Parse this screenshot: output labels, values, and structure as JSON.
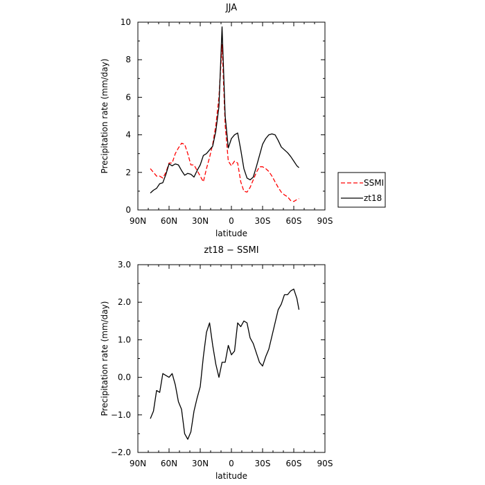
{
  "chart_data": [
    {
      "type": "line",
      "title": "JJA",
      "xlabel": "latitude",
      "ylabel": "Precipitation rate (mm/day)",
      "xlim": [
        90,
        -90
      ],
      "ylim": [
        0,
        10
      ],
      "x_ticks": [
        {
          "v": 90,
          "label": "90N"
        },
        {
          "v": 60,
          "label": "60N"
        },
        {
          "v": 30,
          "label": "30N"
        },
        {
          "v": 0,
          "label": "0"
        },
        {
          "v": -30,
          "label": "30S"
        },
        {
          "v": -60,
          "label": "60S"
        },
        {
          "v": -90,
          "label": "90S"
        }
      ],
      "y_ticks": [
        {
          "v": 0,
          "label": "0"
        },
        {
          "v": 2,
          "label": "2"
        },
        {
          "v": 4,
          "label": "4"
        },
        {
          "v": 6,
          "label": "6"
        },
        {
          "v": 8,
          "label": "8"
        },
        {
          "v": 10,
          "label": "10"
        }
      ],
      "grid": false,
      "legend_position": "right",
      "series": [
        {
          "name": "SSMI",
          "color": "#ff0000",
          "dash": true,
          "x": [
            78,
            75,
            72,
            69,
            66,
            63,
            60,
            57,
            54,
            51,
            48,
            45,
            42,
            39,
            36,
            33,
            30,
            27,
            24,
            21,
            18,
            15,
            12,
            9,
            6,
            3,
            0,
            -3,
            -6,
            -9,
            -12,
            -15,
            -18,
            -21,
            -24,
            -27,
            -30,
            -33,
            -36,
            -39,
            -42,
            -45,
            -48,
            -51,
            -54,
            -57,
            -60,
            -63,
            -65
          ],
          "y": [
            2.2,
            2.0,
            1.8,
            1.8,
            1.7,
            2.0,
            2.5,
            2.5,
            3.0,
            3.3,
            3.55,
            3.5,
            3.0,
            2.4,
            2.4,
            2.1,
            1.8,
            1.5,
            2.2,
            2.8,
            3.5,
            4.5,
            6.0,
            8.8,
            4.5,
            2.6,
            2.35,
            2.6,
            2.5,
            1.5,
            1.0,
            0.95,
            1.2,
            1.6,
            2.0,
            2.3,
            2.3,
            2.2,
            2.05,
            1.8,
            1.5,
            1.2,
            0.95,
            0.8,
            0.7,
            0.5,
            0.45,
            0.55,
            0.6
          ]
        },
        {
          "name": "zt18",
          "color": "#000000",
          "dash": false,
          "x": [
            78,
            75,
            72,
            69,
            66,
            63,
            60,
            57,
            54,
            51,
            48,
            45,
            42,
            39,
            36,
            33,
            30,
            27,
            24,
            21,
            18,
            15,
            12,
            9,
            6,
            3,
            0,
            -3,
            -6,
            -9,
            -12,
            -15,
            -18,
            -21,
            -24,
            -27,
            -30,
            -33,
            -36,
            -39,
            -42,
            -45,
            -48,
            -51,
            -54,
            -57,
            -60,
            -63,
            -65
          ],
          "y": [
            0.9,
            1.05,
            1.15,
            1.4,
            1.45,
            1.9,
            2.45,
            2.35,
            2.45,
            2.4,
            2.1,
            1.85,
            1.95,
            1.9,
            1.75,
            2.1,
            2.4,
            2.9,
            3.0,
            3.2,
            3.4,
            4.2,
            5.5,
            9.75,
            5.0,
            3.3,
            3.8,
            4.0,
            4.1,
            3.2,
            2.2,
            1.7,
            1.6,
            1.75,
            2.3,
            2.9,
            3.5,
            3.8,
            4.0,
            4.05,
            4.0,
            3.7,
            3.35,
            3.2,
            3.05,
            2.85,
            2.6,
            2.35,
            2.25
          ]
        }
      ]
    },
    {
      "type": "line",
      "title": "zt18 − SSMI",
      "xlabel": "latitude",
      "ylabel": "Precipitation rate (mm/day)",
      "xlim": [
        90,
        -90
      ],
      "ylim": [
        -2,
        3
      ],
      "x_ticks": [
        {
          "v": 90,
          "label": "90N"
        },
        {
          "v": 60,
          "label": "60N"
        },
        {
          "v": 30,
          "label": "30N"
        },
        {
          "v": 0,
          "label": "0"
        },
        {
          "v": -30,
          "label": "30S"
        },
        {
          "v": -60,
          "label": "60S"
        },
        {
          "v": -90,
          "label": "90S"
        }
      ],
      "y_ticks": [
        {
          "v": -2,
          "label": "−2.0"
        },
        {
          "v": -1,
          "label": "−1.0"
        },
        {
          "v": 0,
          "label": "0.0"
        },
        {
          "v": 1,
          "label": "1.0"
        },
        {
          "v": 2,
          "label": "2.0"
        },
        {
          "v": 3,
          "label": "3.0"
        }
      ],
      "grid": false,
      "series": [
        {
          "color": "#000000",
          "dash": false,
          "x": [
            78,
            75,
            72,
            69,
            66,
            63,
            60,
            57,
            54,
            51,
            48,
            45,
            42,
            39,
            36,
            33,
            30,
            27,
            24,
            21,
            18,
            15,
            12,
            9,
            6,
            3,
            0,
            -3,
            -6,
            -9,
            -12,
            -15,
            -18,
            -21,
            -24,
            -27,
            -30,
            -33,
            -36,
            -39,
            -42,
            -45,
            -48,
            -51,
            -54,
            -57,
            -60,
            -63,
            -65
          ],
          "y": [
            -1.1,
            -0.9,
            -0.35,
            -0.4,
            0.1,
            0.05,
            0.0,
            0.1,
            -0.2,
            -0.65,
            -0.85,
            -1.5,
            -1.65,
            -1.45,
            -0.9,
            -0.55,
            -0.25,
            0.55,
            1.2,
            1.45,
            0.85,
            0.35,
            0.0,
            0.4,
            0.4,
            0.85,
            0.6,
            0.7,
            1.45,
            1.35,
            1.5,
            1.45,
            1.05,
            0.9,
            0.65,
            0.4,
            0.3,
            0.55,
            0.75,
            1.1,
            1.45,
            1.8,
            1.95,
            2.2,
            2.2,
            2.3,
            2.35,
            2.1,
            1.8
          ]
        }
      ]
    }
  ]
}
